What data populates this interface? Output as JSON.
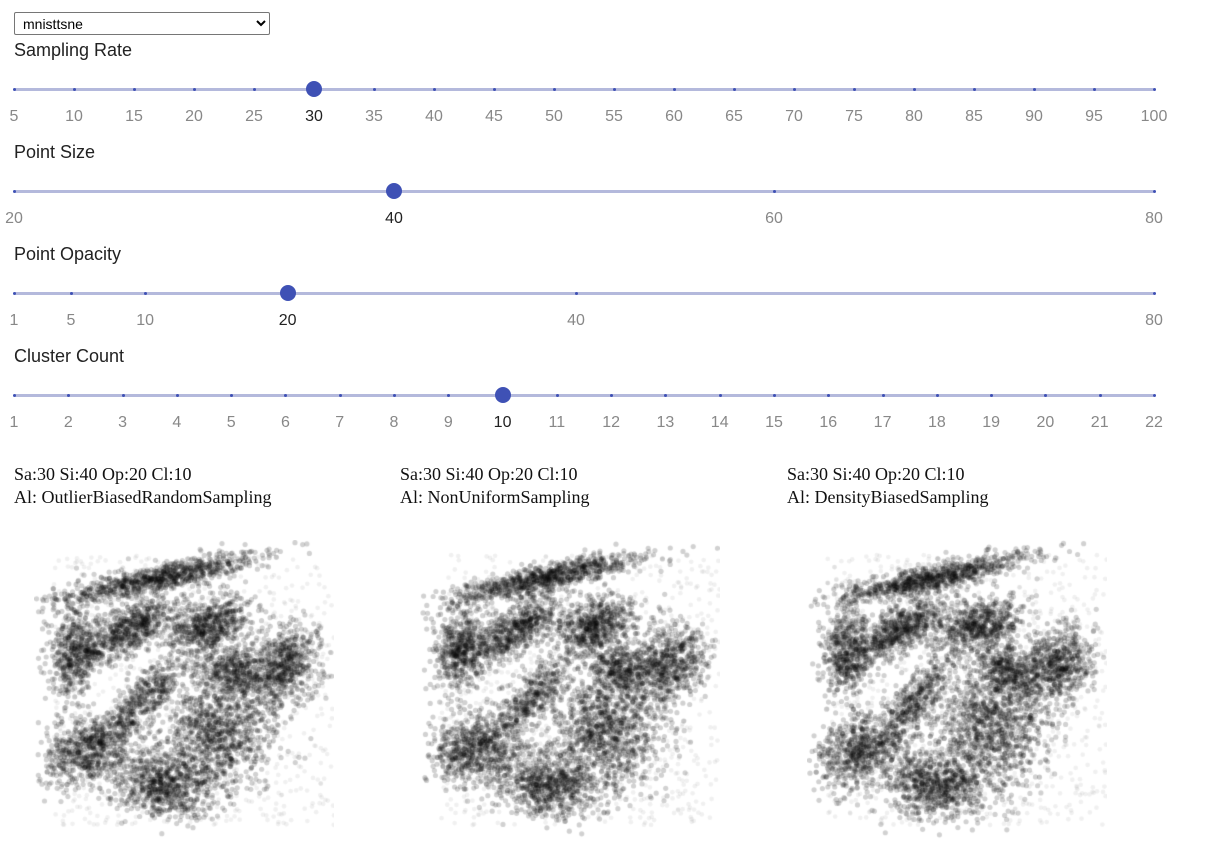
{
  "dataset_select": {
    "selected": "mnisttsne"
  },
  "sliders": [
    {
      "title": "Sampling Rate",
      "ticks": [
        5,
        10,
        15,
        20,
        25,
        30,
        35,
        40,
        45,
        50,
        55,
        60,
        65,
        70,
        75,
        80,
        85,
        90,
        95,
        100
      ],
      "labeled": [
        5,
        10,
        15,
        20,
        25,
        30,
        35,
        40,
        45,
        50,
        55,
        60,
        65,
        70,
        75,
        80,
        85,
        90,
        95,
        100
      ],
      "value": 30,
      "scale": "linear"
    },
    {
      "title": "Point Size",
      "ticks": [
        20,
        40,
        60,
        80
      ],
      "labeled": [
        20,
        40,
        60,
        80
      ],
      "value": 40,
      "scale": "linear"
    },
    {
      "title": "Point Opacity",
      "ticks": [
        1,
        5,
        10,
        20,
        40,
        80
      ],
      "labeled": [
        1,
        5,
        10,
        20,
        40,
        80
      ],
      "value": 20,
      "scale": "linear"
    },
    {
      "title": "Cluster Count",
      "ticks": [
        1,
        2,
        3,
        4,
        5,
        6,
        7,
        8,
        9,
        10,
        11,
        12,
        13,
        14,
        15,
        16,
        17,
        18,
        19,
        20,
        21,
        22
      ],
      "labeled": [
        1,
        2,
        3,
        4,
        5,
        6,
        7,
        8,
        9,
        10,
        11,
        12,
        13,
        14,
        15,
        16,
        17,
        18,
        19,
        20,
        21,
        22
      ],
      "value": 10,
      "scale": "linear"
    }
  ],
  "panels": [
    {
      "params": "Sa:30 Si:40 Op:20 Cl:10",
      "algorithm": "Al: OutlierBiasedRandomSampling"
    },
    {
      "params": "Sa:30 Si:40 Op:20 Cl:10",
      "algorithm": "Al: NonUniformSampling"
    },
    {
      "params": "Sa:30 Si:40 Op:20 Cl:10",
      "algorithm": "Al: DensityBiasedSampling"
    }
  ],
  "colors": {
    "accent": "#3f51b5",
    "track": "#b4b9dc",
    "points": "#000000"
  }
}
